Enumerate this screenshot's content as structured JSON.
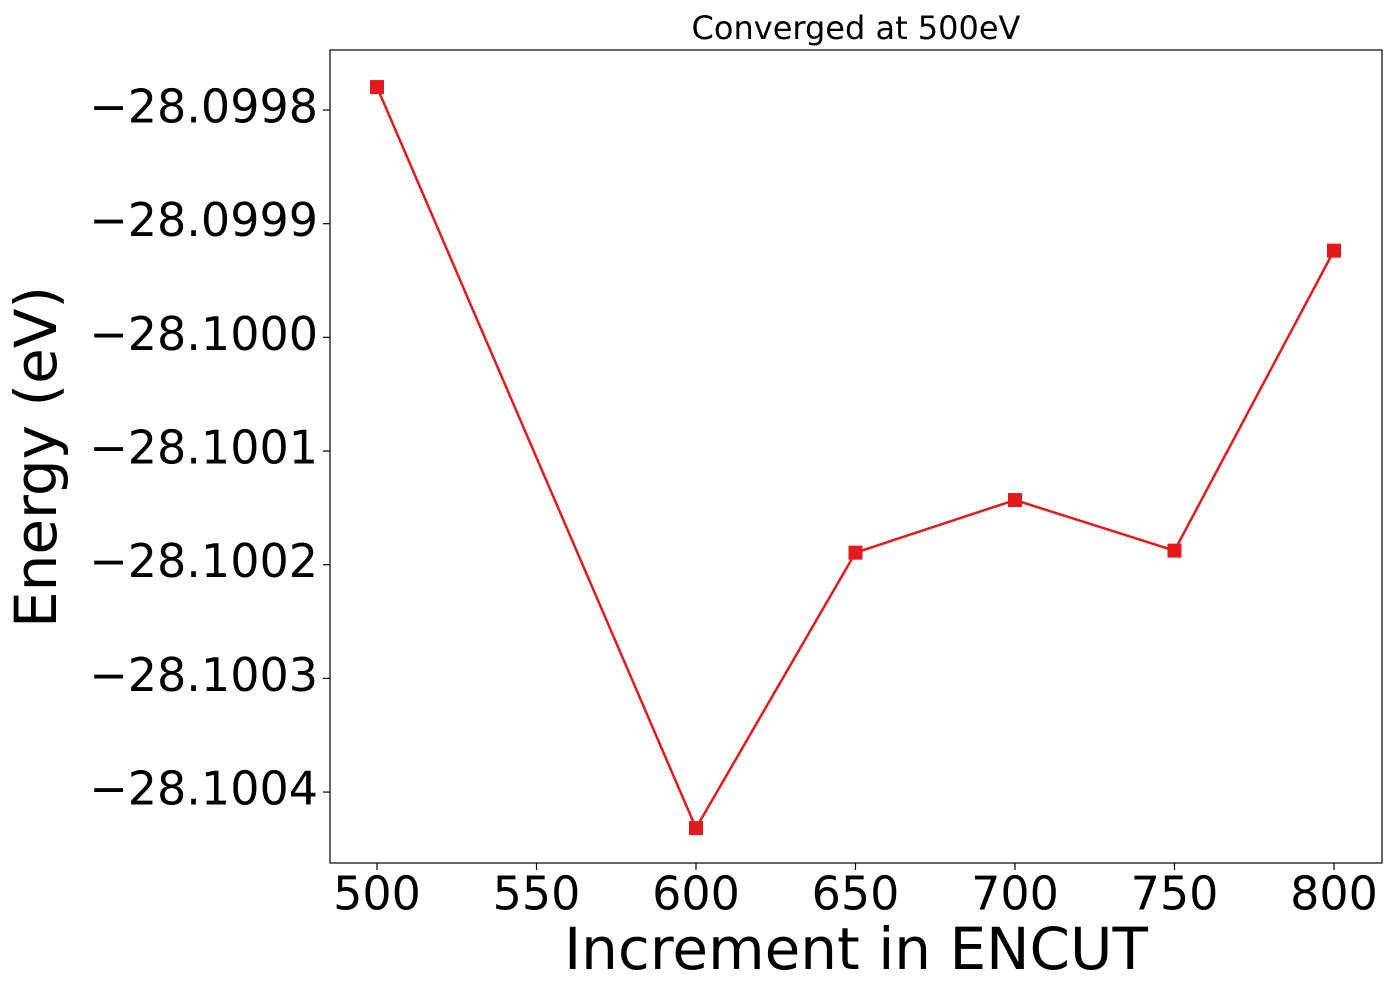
{
  "chart_data": {
    "type": "line",
    "title": "Converged at 500eV",
    "xlabel": "Increment in ENCUT",
    "ylabel": "Energy (eV)",
    "x": [
      500,
      600,
      650,
      700,
      750,
      800
    ],
    "series": [
      {
        "color": "#e31a1c",
        "marker": "square",
        "values": [
          -28.0997798,
          -28.1004317,
          -28.1001894,
          -28.1001431,
          -28.1001876,
          -28.0999237
        ]
      }
    ],
    "xlim": [
      485.27,
      815.05
    ],
    "ylim": [
      -28.1004624,
      -28.0997472
    ],
    "xticks": [
      500,
      550,
      600,
      650,
      700,
      750,
      800
    ],
    "yticks": [
      {
        "value": -28.0998,
        "label": "−28.0998"
      },
      {
        "value": -28.0999,
        "label": "−28.0999"
      },
      {
        "value": -28.1,
        "label": "−28.1000"
      },
      {
        "value": -28.1001,
        "label": "−28.1001"
      },
      {
        "value": -28.1002,
        "label": "−28.1002"
      },
      {
        "value": -28.1003,
        "label": "−28.1003"
      },
      {
        "value": -28.1004,
        "label": "−28.1004"
      }
    ]
  }
}
